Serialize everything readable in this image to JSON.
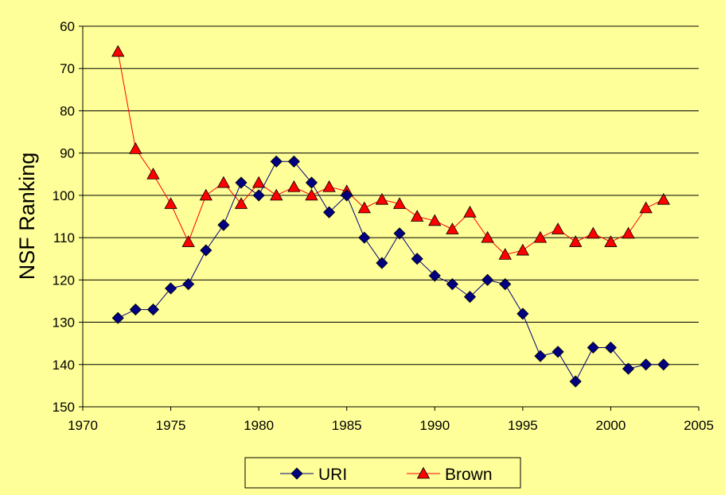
{
  "colors": {
    "background": "#FFFF99",
    "gridline": "#000000",
    "uri_line": "#000080",
    "uri_marker": "#000080",
    "brown_line": "#FF0000",
    "brown_marker": "#FF0000"
  },
  "chart_data": {
    "type": "line",
    "title": "",
    "xlabel": "",
    "ylabel": "NSF Ranking",
    "xlim": [
      1970,
      2005
    ],
    "ylim": [
      60,
      150
    ],
    "y_inverted": true,
    "xticks": [
      1970,
      1975,
      1980,
      1985,
      1990,
      1995,
      2000,
      2005
    ],
    "yticks": [
      60,
      70,
      80,
      90,
      100,
      110,
      120,
      130,
      140,
      150
    ],
    "grid": "horizontal",
    "legend_position": "bottom",
    "series": [
      {
        "name": "URI",
        "marker": "diamond",
        "x": [
          1972,
          1973,
          1974,
          1975,
          1976,
          1977,
          1978,
          1979,
          1980,
          1981,
          1982,
          1983,
          1984,
          1985,
          1986,
          1987,
          1988,
          1989,
          1990,
          1991,
          1992,
          1993,
          1994,
          1995,
          1996,
          1997,
          1998,
          1999,
          2000,
          2001,
          2002,
          2003
        ],
        "y": [
          129,
          127,
          127,
          122,
          121,
          113,
          107,
          97,
          100,
          92,
          92,
          97,
          104,
          100,
          110,
          116,
          109,
          115,
          119,
          121,
          124,
          120,
          121,
          128,
          138,
          137,
          144,
          136,
          136,
          141,
          140,
          140
        ]
      },
      {
        "name": "Brown",
        "marker": "triangle",
        "x": [
          1972,
          1973,
          1974,
          1975,
          1976,
          1977,
          1978,
          1979,
          1980,
          1981,
          1982,
          1983,
          1984,
          1985,
          1986,
          1987,
          1988,
          1989,
          1990,
          1991,
          1992,
          1993,
          1994,
          1995,
          1996,
          1997,
          1998,
          1999,
          2000,
          2001,
          2002,
          2003
        ],
        "y": [
          66,
          89,
          95,
          102,
          111,
          100,
          97,
          102,
          97,
          100,
          98,
          100,
          98,
          99,
          103,
          101,
          102,
          105,
          106,
          108,
          104,
          110,
          114,
          113,
          110,
          108,
          111,
          109,
          111,
          109,
          103,
          101
        ]
      }
    ]
  }
}
